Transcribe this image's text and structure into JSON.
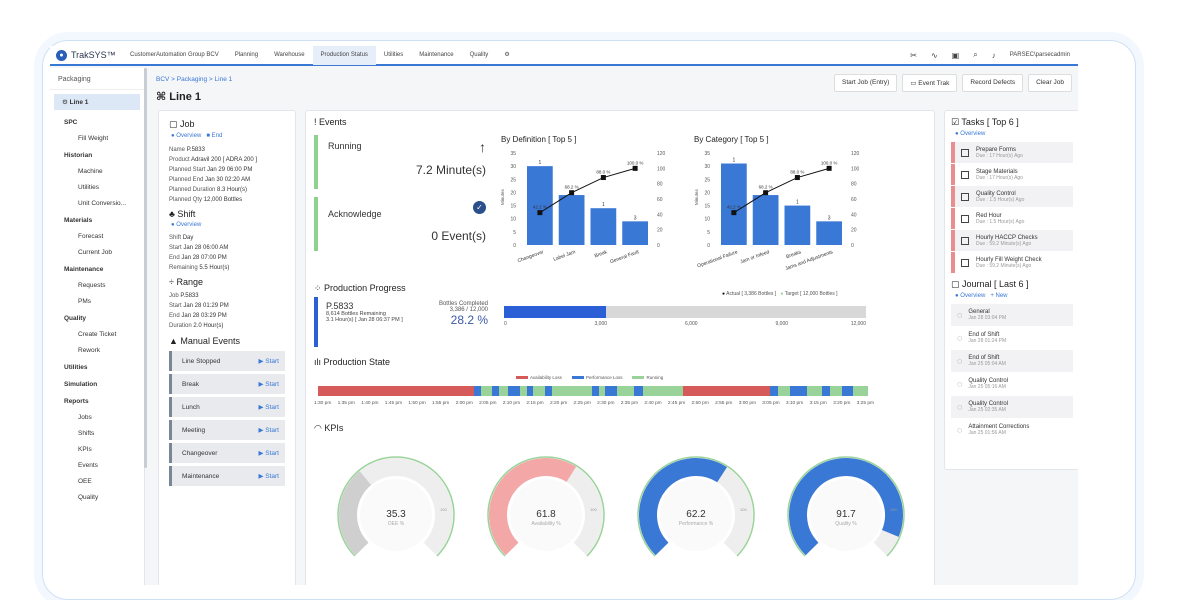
{
  "brand": {
    "name": "TrakSYS™",
    "org": "CustomerAutomation Group BCV"
  },
  "nav": [
    "Planning",
    "Warehouse",
    "Production Status",
    "Utilities",
    "Maintenance",
    "Quality",
    "",
    ""
  ],
  "user": "PARSEC\\parsecadmin",
  "sidebar": {
    "header": "Packaging",
    "selected": "Line 1",
    "items": [
      {
        "t": "grp",
        "label": "SPC"
      },
      {
        "t": "it",
        "label": "Fill Weight"
      },
      {
        "t": "grp",
        "label": "Historian"
      },
      {
        "t": "it",
        "label": "Machine"
      },
      {
        "t": "it",
        "label": "Utilities"
      },
      {
        "t": "it",
        "label": "Unit Conversio..."
      },
      {
        "t": "grp",
        "label": "Materials"
      },
      {
        "t": "it",
        "label": "Forecast"
      },
      {
        "t": "it",
        "label": "Current Job"
      },
      {
        "t": "grp",
        "label": "Maintenance"
      },
      {
        "t": "it",
        "label": "Requests"
      },
      {
        "t": "it",
        "label": "PMs"
      },
      {
        "t": "grp",
        "label": "Quality"
      },
      {
        "t": "it",
        "label": "Create Ticket"
      },
      {
        "t": "it",
        "label": "Rework"
      },
      {
        "t": "grp",
        "label": "Utilities"
      },
      {
        "t": "grp",
        "label": "Simulation"
      },
      {
        "t": "grp",
        "label": "Reports"
      },
      {
        "t": "it",
        "label": "Jobs"
      },
      {
        "t": "it",
        "label": "Shifts"
      },
      {
        "t": "it",
        "label": "KPIs"
      },
      {
        "t": "it",
        "label": "Events"
      },
      {
        "t": "it",
        "label": "OEE"
      },
      {
        "t": "it",
        "label": "Quality"
      }
    ]
  },
  "breadcrumb": "BCV > Packaging > Line 1",
  "page_title": "Line 1",
  "actions": [
    "Start Job (Entry)",
    "Event Trak",
    "Record Defects",
    "Clear Job"
  ],
  "job": {
    "title": "Job",
    "links": [
      "Overview",
      "End"
    ],
    "rows": [
      [
        "Name",
        "P.5833"
      ],
      [
        "Product",
        "Adravil 200 [ ADRA 200 ]"
      ],
      [
        "Planned Start",
        "Jan 29 06:00 PM"
      ],
      [
        "Planned End",
        "Jan 30 02:20 AM"
      ],
      [
        "Planned Duration",
        "8.3 Hour(s)"
      ],
      [
        "Planned Qty",
        "12,000 Bottles"
      ]
    ]
  },
  "shift": {
    "title": "Shift",
    "link": "Overview",
    "rows": [
      [
        "Shift",
        "Day"
      ],
      [
        "Start",
        "Jan 28 06:00 AM"
      ],
      [
        "End",
        "Jan 28 07:00 PM"
      ],
      [
        "Remaining",
        "5.5 Hour(s)"
      ]
    ]
  },
  "range": {
    "title": "Range",
    "rows": [
      [
        "Job",
        "P.5833"
      ],
      [
        "Start",
        "Jan 28 01:29 PM"
      ],
      [
        "End",
        "Jan 28 03:29 PM"
      ],
      [
        "Duration",
        "2.0 Hour(s)"
      ]
    ]
  },
  "manual_events": {
    "title": "Manual Events",
    "start": "Start",
    "items": [
      "Line Stopped",
      "Break",
      "Lunch",
      "Meeting",
      "Changeover",
      "Maintenance"
    ]
  },
  "events": {
    "title": "Events",
    "running_label": "Running",
    "running_value": "7.2 Minute(s)",
    "ack_label": "Acknowledge",
    "ack_value": "0 Event(s)"
  },
  "charts_text": {
    "def_title": "By Definition [ Top 5 ]",
    "cat_title": "By Category [ Top 5 ]",
    "ylabel": "Minutes"
  },
  "chart_data": [
    {
      "type": "bar",
      "title": "By Definition [ Top 5 ]",
      "categories": [
        "Changeover",
        "Label Jam",
        "Break",
        "General Fault"
      ],
      "values": [
        30,
        19,
        14,
        9
      ],
      "data_labels": [
        "1",
        "",
        "1",
        "3"
      ],
      "pareto": [
        42.2,
        68.2,
        88.0,
        100.0
      ],
      "pareto_labels": [
        "42.2 %",
        "68.2 %",
        "88.0 %",
        "100.0 %"
      ],
      "ylim": [
        0,
        35
      ],
      "y2lim": [
        0,
        120
      ],
      "yticks": [
        0,
        5,
        10,
        15,
        20,
        25,
        30,
        35
      ],
      "y2ticks": [
        0,
        20,
        40,
        60,
        80,
        100,
        120
      ]
    },
    {
      "type": "bar",
      "title": "By Category [ Top 5 ]",
      "categories": [
        "Operational Failure",
        "Jam or Infeed",
        "Breaks",
        "Jams and Adjustments"
      ],
      "values": [
        31,
        19,
        15,
        9
      ],
      "data_labels": [
        "1",
        "",
        "1",
        "3"
      ],
      "pareto": [
        42.2,
        68.2,
        88.0,
        100.0
      ],
      "pareto_labels": [
        "42.2 %",
        "68.2 %",
        "88.0 %",
        "100.0 %"
      ],
      "ylim": [
        0,
        35
      ],
      "y2lim": [
        0,
        120
      ],
      "yticks": [
        0,
        5,
        10,
        15,
        20,
        25,
        30,
        35
      ],
      "y2ticks": [
        0,
        20,
        40,
        60,
        80,
        100,
        120
      ]
    }
  ],
  "progress": {
    "title": "Production Progress",
    "job": "P.5833",
    "remaining": "8,614 Bottles Remaining",
    "time_left": "3.1 Hour(s) [ Jan 28 06:37 PM ]",
    "completed_label": "Bottles Completed",
    "completed_value": "3,386 / 12,000",
    "percent": "28.2 %",
    "fill_fraction": 0.282,
    "legend_actual": "Actual [ 3,386 Bottles ]",
    "legend_target": "Target [ 12,000 Bottles ]",
    "ticks": [
      "0",
      "3,000",
      "6,000",
      "9,000",
      "12,000"
    ]
  },
  "state": {
    "title": "Production State",
    "legend": [
      "Availability Loss",
      "Performance Loss",
      "Running"
    ],
    "colors": {
      "avail": "#d65a5a",
      "perf": "#3a78d6",
      "run": "#9ad39a"
    },
    "segments": [
      [
        "avail",
        0.27
      ],
      [
        "perf",
        0.012
      ],
      [
        "run",
        0.02
      ],
      [
        "perf",
        0.012
      ],
      [
        "run",
        0.015
      ],
      [
        "perf",
        0.02
      ],
      [
        "run",
        0.012
      ],
      [
        "perf",
        0.012
      ],
      [
        "run",
        0.02
      ],
      [
        "perf",
        0.012
      ],
      [
        "run",
        0.07
      ],
      [
        "perf",
        0.012
      ],
      [
        "run",
        0.01
      ],
      [
        "perf",
        0.02
      ],
      [
        "run",
        0.03
      ],
      [
        "perf",
        0.015
      ],
      [
        "run",
        0.07
      ],
      [
        "avail",
        0.15
      ],
      [
        "perf",
        0.015
      ],
      [
        "run",
        0.02
      ],
      [
        "perf",
        0.03
      ],
      [
        "run",
        0.025
      ],
      [
        "perf",
        0.015
      ],
      [
        "run",
        0.02
      ],
      [
        "perf",
        0.02
      ],
      [
        "run",
        0.025
      ]
    ],
    "times": [
      "1:30 pm",
      "1:35 pm",
      "1:40 pm",
      "1:45 pm",
      "1:50 pm",
      "1:55 pm",
      "2:00 pm",
      "2:05 pm",
      "2:10 pm",
      "2:15 pm",
      "2:20 pm",
      "2:25 pm",
      "2:30 pm",
      "2:35 pm",
      "2:40 pm",
      "2:45 pm",
      "2:50 pm",
      "2:55 pm",
      "3:00 pm",
      "3:05 pm",
      "3:10 pm",
      "3:15 pm",
      "3:20 pm",
      "3:25 pm"
    ]
  },
  "kpis": {
    "title": "KPIs",
    "items": [
      {
        "value": "35.3",
        "label": "OEE %",
        "fraction": 0.353,
        "color": "#e6e6e6",
        "fill": "#cfcfcf"
      },
      {
        "value": "61.8",
        "label": "Availability %",
        "fraction": 0.618,
        "color": "#f3a7a7",
        "fill": "#f3a7a7"
      },
      {
        "value": "62.2",
        "label": "Performance %",
        "fraction": 0.622,
        "color": "#3a78d6",
        "fill": "#3a78d6"
      },
      {
        "value": "91.7",
        "label": "Quality %",
        "fraction": 0.917,
        "color": "#3a78d6",
        "fill": "#3a78d6"
      }
    ],
    "max": "100"
  },
  "tasks": {
    "title": "Tasks [ Top 6 ]",
    "link": "Overview",
    "items": [
      {
        "name": "Prepare Forms",
        "due": "Due : 17 Hour(s) Ago"
      },
      {
        "name": "Stage Materials",
        "due": "Due : 17 Hour(s) Ago"
      },
      {
        "name": "Quality Control",
        "due": "Due : 1.5 Hour(s) Ago"
      },
      {
        "name": "Red Hour",
        "due": "Due : 1.5 Hour(s) Ago"
      },
      {
        "name": "Hourly HACCP Checks",
        "due": "Due : 59.2 Minute(s) Ago"
      },
      {
        "name": "Hourly Fill Weight Check",
        "due": "Due : 59.2 Minute(s) Ago"
      }
    ]
  },
  "journal": {
    "title": "Journal [ Last 6 ]",
    "links": [
      "Overview",
      "New"
    ],
    "items": [
      {
        "name": "General",
        "date": "Jan 28 03:04 PM"
      },
      {
        "name": "End of Shift",
        "date": "Jan 28 01:24 PM"
      },
      {
        "name": "End of Shift",
        "date": "Jan 25 05:04 AM"
      },
      {
        "name": "Quality Control",
        "date": "Jan 25 05:16 AM"
      },
      {
        "name": "Quality Control",
        "date": "Jan 25 02:35 AM"
      },
      {
        "name": "Attainment Corrections",
        "date": "Jan 25 01:56 AM"
      }
    ]
  }
}
